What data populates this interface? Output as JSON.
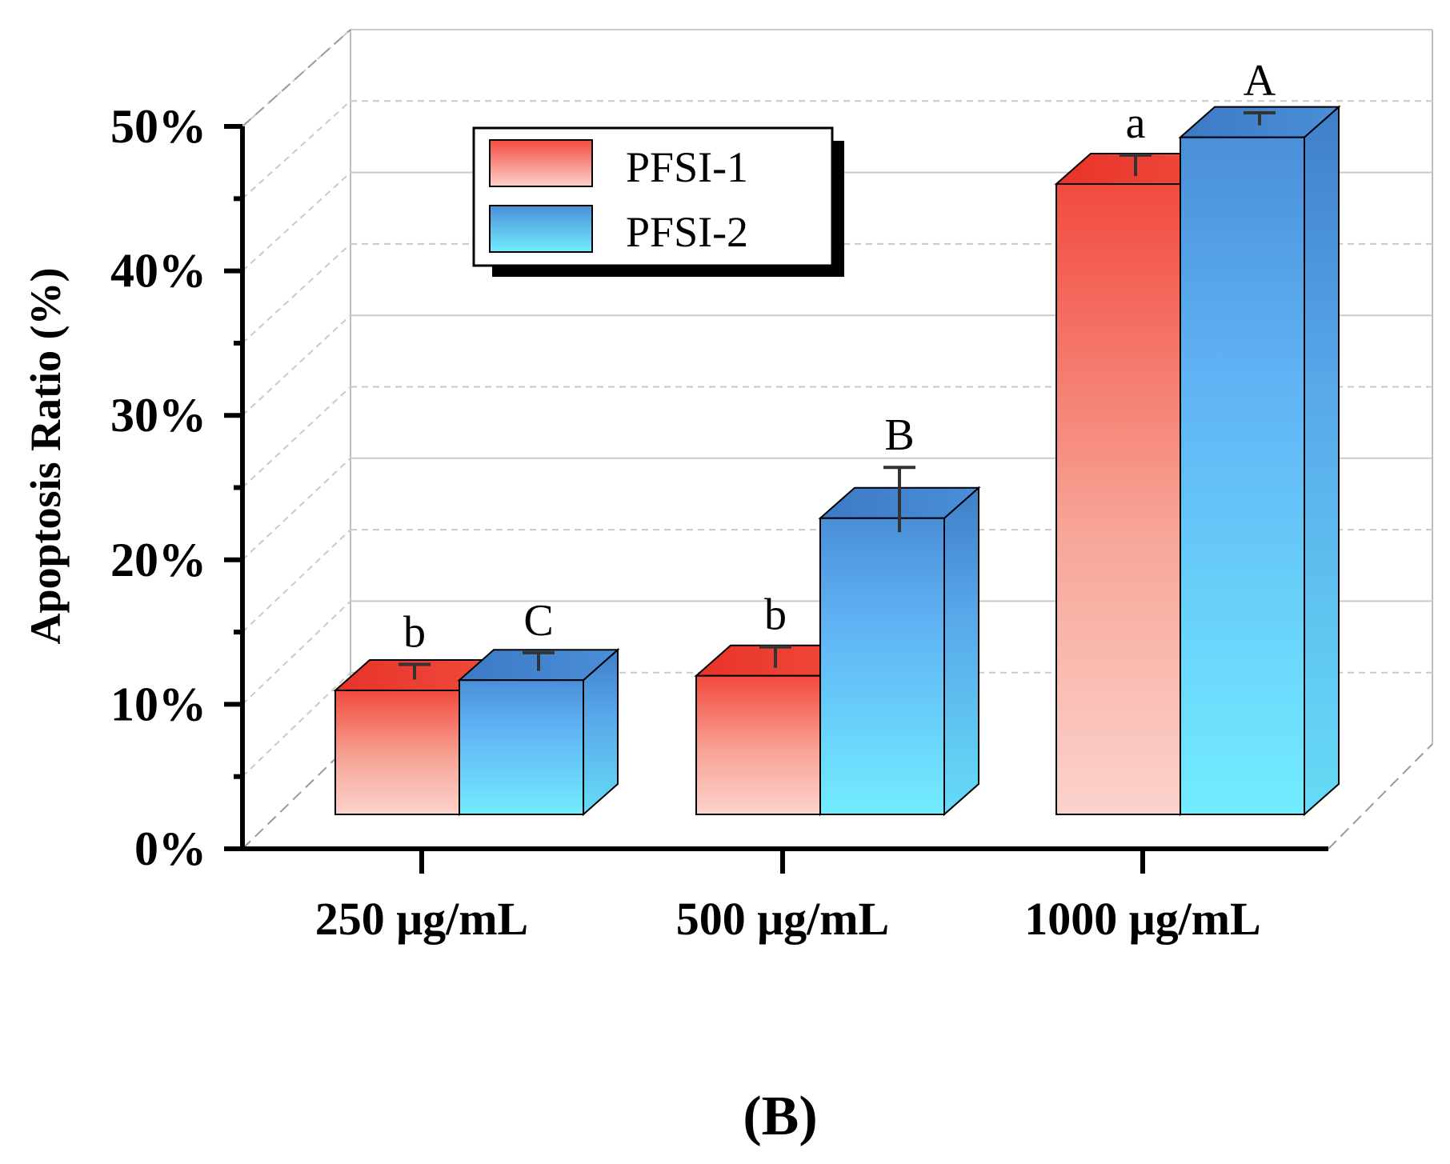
{
  "chart_data": {
    "type": "bar",
    "style": "3d-grouped",
    "title": "",
    "panel_label": "(B)",
    "ylabel": "Apoptosis Ratio  (%)",
    "xlabel": "",
    "ylim": [
      0,
      50
    ],
    "yticks": [
      0,
      10,
      20,
      30,
      40,
      50
    ],
    "ytick_labels": [
      "0%",
      "10%",
      "20%",
      "30%",
      "40%",
      "50%"
    ],
    "categories": [
      "250 μg/mL",
      "500 μg/mL",
      "1000 μg/mL"
    ],
    "series": [
      {
        "name": "PFSI-1",
        "values": [
          8.5,
          9.5,
          43.2
        ],
        "errors": [
          0.3,
          0.5,
          0.5
        ],
        "labels": [
          "b",
          "b",
          "a"
        ],
        "color_top": "#f24a3f",
        "color_bottom": "#fcd2cc"
      },
      {
        "name": "PFSI-2",
        "values": [
          9.2,
          20.3,
          46.4
        ],
        "errors": [
          0.4,
          2.0,
          0.2
        ],
        "labels": [
          "C",
          "B",
          "A"
        ],
        "color_top": "#4a8fd8",
        "color_bottom": "#72ecff"
      }
    ],
    "legend": {
      "position": "top-left"
    },
    "grid": true
  }
}
